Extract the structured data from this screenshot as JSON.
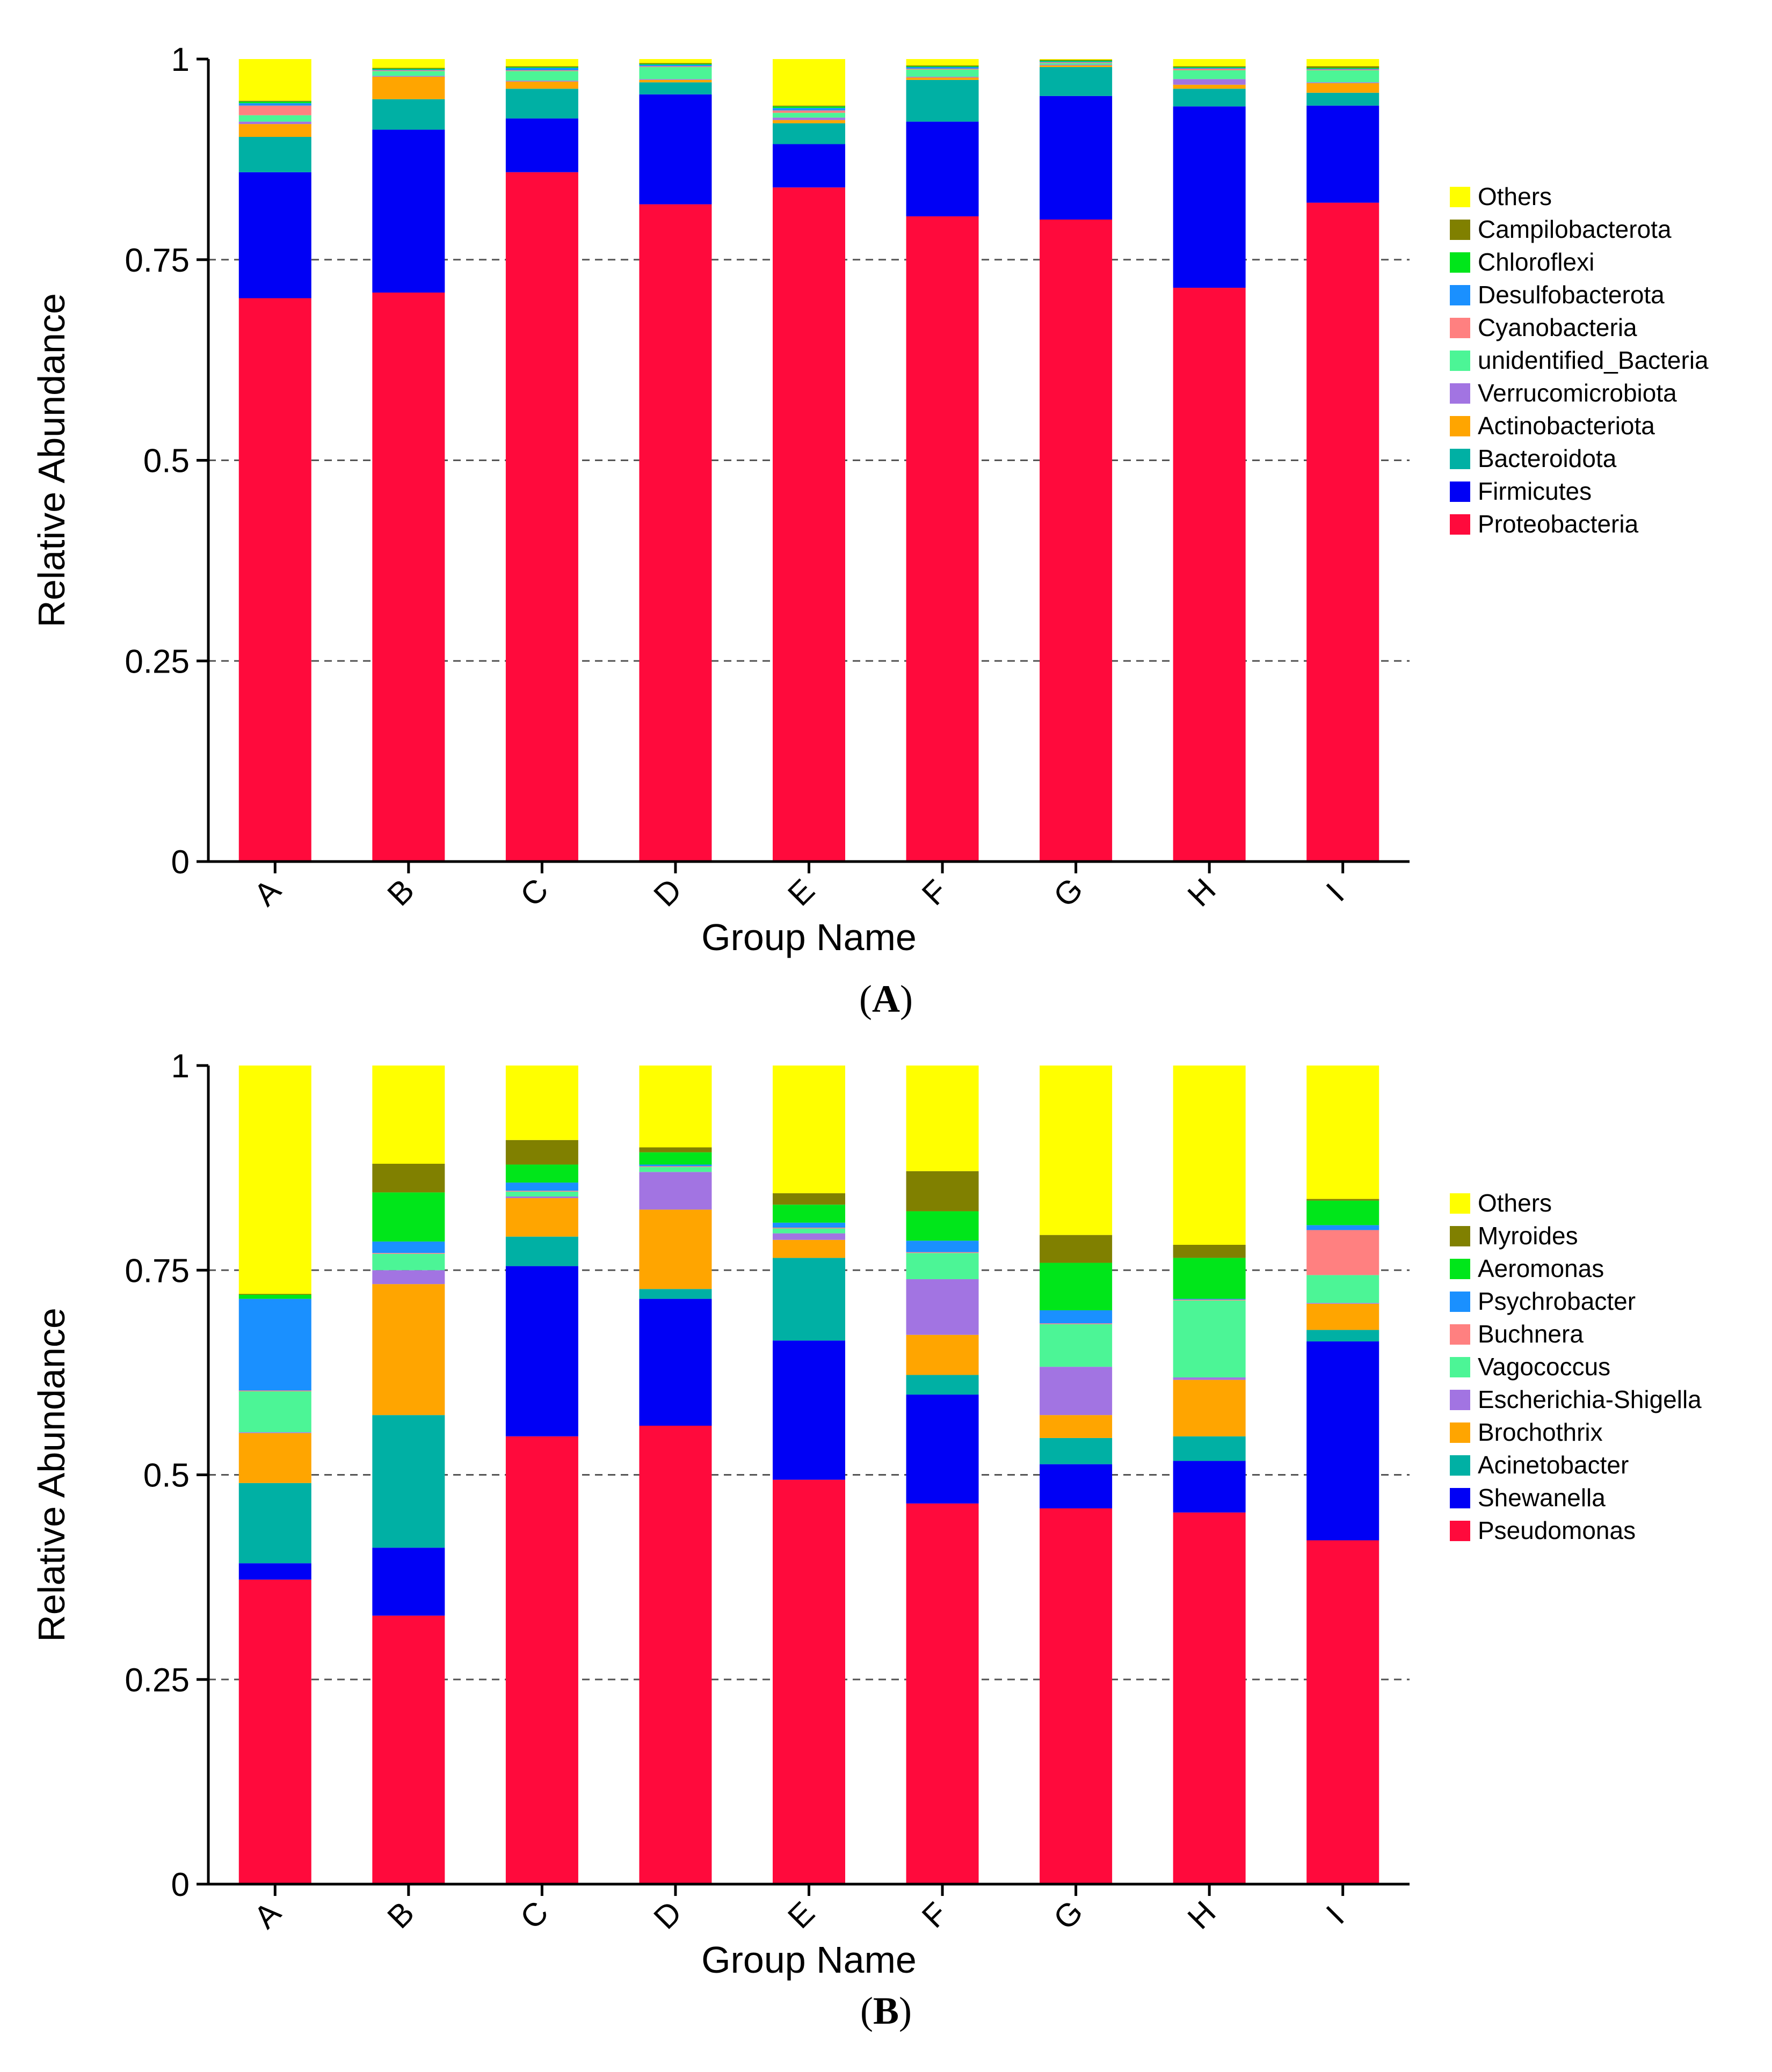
{
  "figure": {
    "panels": [
      "A",
      "B"
    ]
  },
  "colors": {
    "axis": "#000000",
    "grid": "#555555",
    "background": "#ffffff"
  },
  "chart_data": [
    {
      "type": "bar",
      "stacked": true,
      "panel_label": "A",
      "title": "",
      "xlabel": "Group Name",
      "ylabel": "Relative Abundance",
      "ylim": [
        0,
        1
      ],
      "yticks": [
        "0",
        "0.25",
        "0.5",
        "0.75",
        "1"
      ],
      "grid": "horizontal dashed at 0.25, 0.5, 0.75",
      "legend_position": "right",
      "categories": [
        "A",
        "B",
        "C",
        "D",
        "E",
        "F",
        "G",
        "H",
        "I"
      ],
      "series": [
        {
          "name": "Proteobacteria",
          "color": "#ff0a3c",
          "values": [
            0.702,
            0.709,
            0.859,
            0.819,
            0.84,
            0.804,
            0.8,
            0.715,
            0.821
          ]
        },
        {
          "name": "Firmicutes",
          "color": "#0000f5",
          "values": [
            0.157,
            0.203,
            0.067,
            0.137,
            0.054,
            0.118,
            0.154,
            0.226,
            0.121
          ]
        },
        {
          "name": "Bacteroidota",
          "color": "#00b0a4",
          "values": [
            0.044,
            0.038,
            0.037,
            0.015,
            0.026,
            0.052,
            0.036,
            0.022,
            0.016
          ]
        },
        {
          "name": "Actinobacteriota",
          "color": "#ffa500",
          "values": [
            0.016,
            0.028,
            0.009,
            0.003,
            0.004,
            0.003,
            0.002,
            0.005,
            0.012
          ]
        },
        {
          "name": "Verrucomicrobiota",
          "color": "#a274e2",
          "values": [
            0.003,
            0.001,
            0.001,
            0.001,
            0.003,
            0.001,
            0.001,
            0.007,
            0.001
          ]
        },
        {
          "name": "unidentified_Bacteria",
          "color": "#4cf596",
          "values": [
            0.008,
            0.006,
            0.012,
            0.015,
            0.006,
            0.009,
            0.002,
            0.011,
            0.015
          ]
        },
        {
          "name": "Cyanobacteria",
          "color": "#ff8080",
          "values": [
            0.012,
            0.001,
            0.001,
            0.001,
            0.003,
            0.001,
            0.001,
            0.002,
            0.001
          ]
        },
        {
          "name": "Desulfobacterota",
          "color": "#1a90ff",
          "values": [
            0.003,
            0.001,
            0.003,
            0.002,
            0.003,
            0.002,
            0.001,
            0.001,
            0.001
          ]
        },
        {
          "name": "Chloroflexi",
          "color": "#00e61a",
          "values": [
            0.002,
            0.001,
            0.001,
            0.001,
            0.002,
            0.001,
            0.001,
            0.001,
            0.001
          ]
        },
        {
          "name": "Campilobacterota",
          "color": "#808000",
          "values": [
            0.001,
            0.001,
            0.001,
            0.001,
            0.001,
            0.001,
            0.001,
            0.001,
            0.002
          ]
        },
        {
          "name": "Others",
          "color": "#ffff00",
          "values": [
            0.052,
            0.011,
            0.009,
            0.005,
            0.058,
            0.008,
            0.001,
            0.009,
            0.009
          ]
        }
      ]
    },
    {
      "type": "bar",
      "stacked": true,
      "panel_label": "B",
      "title": "",
      "xlabel": "Group Name",
      "ylabel": "Relative Abundance",
      "ylim": [
        0,
        1
      ],
      "yticks": [
        "0",
        "0.25",
        "0.5",
        "0.75",
        "1"
      ],
      "grid": "horizontal dashed at 0.25, 0.5, 0.75",
      "legend_position": "right",
      "categories": [
        "A",
        "B",
        "C",
        "D",
        "E",
        "F",
        "G",
        "H",
        "I"
      ],
      "series": [
        {
          "name": "Pseudomonas",
          "color": "#ff0a3c",
          "values": [
            0.372,
            0.328,
            0.547,
            0.56,
            0.494,
            0.465,
            0.459,
            0.454,
            0.42
          ]
        },
        {
          "name": "Shewanella",
          "color": "#0000f5",
          "values": [
            0.02,
            0.083,
            0.208,
            0.155,
            0.17,
            0.133,
            0.054,
            0.063,
            0.243
          ]
        },
        {
          "name": "Acinetobacter",
          "color": "#00b0a4",
          "values": [
            0.098,
            0.162,
            0.036,
            0.012,
            0.101,
            0.024,
            0.032,
            0.03,
            0.014
          ]
        },
        {
          "name": "Brochothrix",
          "color": "#ffa500",
          "values": [
            0.061,
            0.16,
            0.047,
            0.097,
            0.022,
            0.049,
            0.028,
            0.069,
            0.032
          ]
        },
        {
          "name": "Escherichia-Shigella",
          "color": "#a274e2",
          "values": [
            0.001,
            0.017,
            0.002,
            0.046,
            0.008,
            0.068,
            0.059,
            0.003,
            0.001
          ]
        },
        {
          "name": "Vagococcus",
          "color": "#4cf596",
          "values": [
            0.05,
            0.02,
            0.006,
            0.006,
            0.006,
            0.032,
            0.052,
            0.094,
            0.034
          ]
        },
        {
          "name": "Buchnera",
          "color": "#ff8080",
          "values": [
            0.001,
            0.001,
            0.001,
            0.001,
            0.001,
            0.001,
            0.001,
            0.001,
            0.055
          ]
        },
        {
          "name": "Psychrobacter",
          "color": "#1a90ff",
          "values": [
            0.112,
            0.014,
            0.01,
            0.002,
            0.006,
            0.014,
            0.016,
            0.001,
            0.006
          ]
        },
        {
          "name": "Aeromonas",
          "color": "#00e61a",
          "values": [
            0.005,
            0.06,
            0.022,
            0.015,
            0.022,
            0.036,
            0.058,
            0.05,
            0.03
          ]
        },
        {
          "name": "Myroides",
          "color": "#808000",
          "values": [
            0.001,
            0.035,
            0.03,
            0.006,
            0.014,
            0.049,
            0.034,
            0.016,
            0.002
          ]
        },
        {
          "name": "Others",
          "color": "#ffff00",
          "values": [
            0.279,
            0.12,
            0.091,
            0.1,
            0.156,
            0.129,
            0.207,
            0.219,
            0.163
          ]
        }
      ]
    }
  ]
}
